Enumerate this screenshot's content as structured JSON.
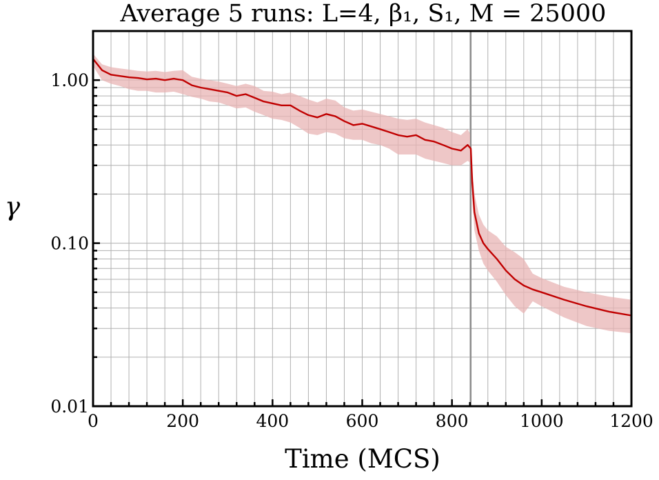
{
  "chart_data": {
    "type": "line",
    "title": "Average 5 runs: L=4, β₁, S₁, M = 25000",
    "xlabel": "Time (MCS)",
    "ylabel": "γ",
    "xlim": [
      0,
      1200
    ],
    "ylim": [
      0.01,
      2.0
    ],
    "yscale": "log",
    "grid": true,
    "xticks": [
      0,
      200,
      400,
      600,
      800,
      1000,
      1200
    ],
    "xtick_labels": [
      "0",
      "200",
      "400",
      "600",
      "800",
      "1000",
      "1200"
    ],
    "yticks": [
      0.01,
      0.1,
      1.0
    ],
    "ytick_labels": [
      "0.01",
      "0.10",
      "1.00"
    ],
    "vline_x": 842,
    "series": [
      {
        "color": "#c00000",
        "band_color": "#e8b4b4",
        "x": [
          0,
          20,
          40,
          60,
          80,
          100,
          120,
          140,
          160,
          180,
          200,
          220,
          240,
          260,
          280,
          300,
          320,
          340,
          360,
          380,
          400,
          420,
          440,
          460,
          480,
          500,
          520,
          540,
          560,
          580,
          600,
          620,
          640,
          660,
          680,
          700,
          720,
          740,
          760,
          780,
          800,
          820,
          835,
          842,
          845,
          850,
          860,
          870,
          880,
          900,
          920,
          940,
          960,
          980,
          1000,
          1050,
          1100,
          1150,
          1200
        ],
        "y": [
          1.35,
          1.15,
          1.08,
          1.06,
          1.04,
          1.03,
          1.01,
          1.02,
          1.0,
          1.02,
          1.0,
          0.93,
          0.9,
          0.88,
          0.86,
          0.84,
          0.8,
          0.82,
          0.78,
          0.74,
          0.72,
          0.7,
          0.7,
          0.65,
          0.61,
          0.59,
          0.62,
          0.6,
          0.56,
          0.53,
          0.54,
          0.52,
          0.5,
          0.48,
          0.46,
          0.45,
          0.46,
          0.43,
          0.42,
          0.4,
          0.38,
          0.37,
          0.4,
          0.38,
          0.24,
          0.155,
          0.115,
          0.1,
          0.092,
          0.08,
          0.068,
          0.06,
          0.055,
          0.052,
          0.05,
          0.045,
          0.041,
          0.038,
          0.036
        ],
        "lower": [
          1.22,
          1.0,
          0.95,
          0.92,
          0.88,
          0.86,
          0.86,
          0.84,
          0.84,
          0.85,
          0.82,
          0.79,
          0.77,
          0.74,
          0.73,
          0.7,
          0.67,
          0.68,
          0.64,
          0.61,
          0.58,
          0.57,
          0.55,
          0.51,
          0.47,
          0.46,
          0.48,
          0.47,
          0.44,
          0.43,
          0.43,
          0.41,
          0.4,
          0.38,
          0.35,
          0.35,
          0.35,
          0.33,
          0.32,
          0.31,
          0.3,
          0.3,
          0.32,
          0.31,
          0.19,
          0.12,
          0.09,
          0.075,
          0.068,
          0.058,
          0.048,
          0.041,
          0.037,
          0.044,
          0.041,
          0.035,
          0.031,
          0.029,
          0.028
        ],
        "upper": [
          1.45,
          1.25,
          1.2,
          1.18,
          1.16,
          1.14,
          1.13,
          1.14,
          1.12,
          1.14,
          1.15,
          1.05,
          1.02,
          1.0,
          0.98,
          0.95,
          0.92,
          0.95,
          0.92,
          0.86,
          0.85,
          0.82,
          0.84,
          0.8,
          0.76,
          0.73,
          0.77,
          0.75,
          0.68,
          0.65,
          0.66,
          0.64,
          0.62,
          0.6,
          0.58,
          0.57,
          0.58,
          0.55,
          0.53,
          0.51,
          0.48,
          0.46,
          0.5,
          0.46,
          0.29,
          0.2,
          0.15,
          0.13,
          0.12,
          0.11,
          0.095,
          0.088,
          0.08,
          0.065,
          0.061,
          0.054,
          0.05,
          0.047,
          0.045
        ]
      }
    ]
  }
}
